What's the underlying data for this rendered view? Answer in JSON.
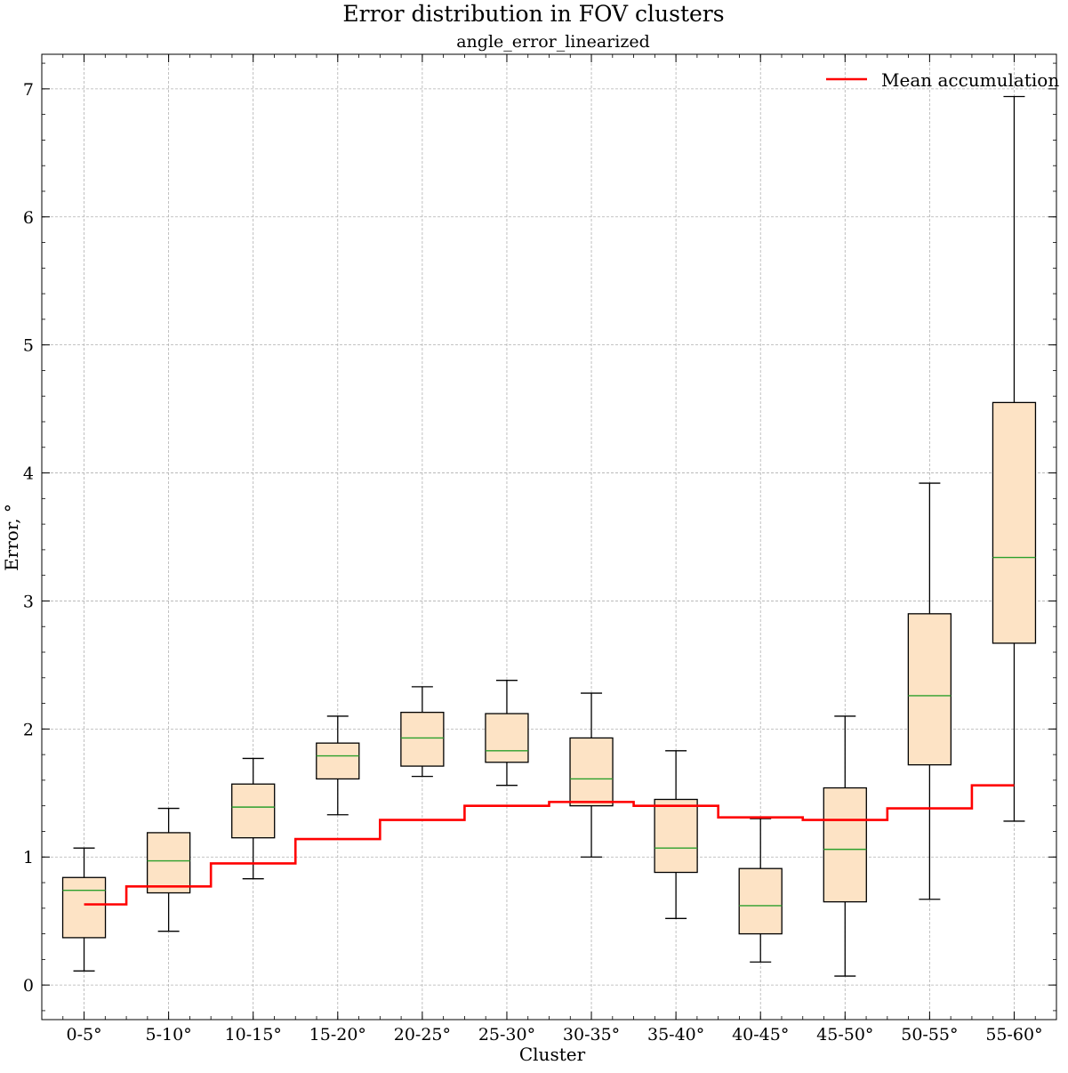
{
  "chart_data": {
    "type": "box",
    "title": "Error distribution in FOV clusters",
    "subtitle": "angle_error_linearized",
    "xlabel": "Cluster",
    "ylabel": "Error, °",
    "ylim": [
      -0.27,
      7.27
    ],
    "yticks": [
      "0",
      "1",
      "2",
      "3",
      "4",
      "5",
      "6",
      "7"
    ],
    "grid": true,
    "legend": {
      "position": "top-right",
      "entries": [
        "Mean accumulation"
      ]
    },
    "colors": {
      "box_fill": "#fde3c5",
      "box_edge": "#000000",
      "median": "#2ca02c",
      "mean_line": "#ff0000",
      "grid": "#b0b0b0"
    },
    "categories": [
      "0-5°",
      "5-10°",
      "10-15°",
      "15-20°",
      "20-25°",
      "25-30°",
      "30-35°",
      "35-40°",
      "40-45°",
      "45-50°",
      "50-55°",
      "55-60°"
    ],
    "boxes": [
      {
        "whisker_low": 0.11,
        "q1": 0.37,
        "median": 0.74,
        "q3": 0.84,
        "whisker_high": 1.07
      },
      {
        "whisker_low": 0.42,
        "q1": 0.72,
        "median": 0.97,
        "q3": 1.19,
        "whisker_high": 1.38
      },
      {
        "whisker_low": 0.83,
        "q1": 1.15,
        "median": 1.39,
        "q3": 1.57,
        "whisker_high": 1.77
      },
      {
        "whisker_low": 1.33,
        "q1": 1.61,
        "median": 1.79,
        "q3": 1.89,
        "whisker_high": 2.1
      },
      {
        "whisker_low": 1.63,
        "q1": 1.71,
        "median": 1.93,
        "q3": 2.13,
        "whisker_high": 2.33
      },
      {
        "whisker_low": 1.56,
        "q1": 1.74,
        "median": 1.83,
        "q3": 2.12,
        "whisker_high": 2.38
      },
      {
        "whisker_low": 1.0,
        "q1": 1.4,
        "median": 1.61,
        "q3": 1.93,
        "whisker_high": 2.28
      },
      {
        "whisker_low": 0.52,
        "q1": 0.88,
        "median": 1.07,
        "q3": 1.45,
        "whisker_high": 1.83
      },
      {
        "whisker_low": 0.18,
        "q1": 0.4,
        "median": 0.62,
        "q3": 0.91,
        "whisker_high": 1.3
      },
      {
        "whisker_low": 0.07,
        "q1": 0.65,
        "median": 1.06,
        "q3": 1.54,
        "whisker_high": 2.1
      },
      {
        "whisker_low": 0.67,
        "q1": 1.72,
        "median": 2.26,
        "q3": 2.9,
        "whisker_high": 3.92
      },
      {
        "whisker_low": 1.28,
        "q1": 2.67,
        "median": 3.34,
        "q3": 4.55,
        "whisker_high": 6.94
      }
    ],
    "mean_accumulation": [
      0.63,
      0.77,
      0.95,
      1.14,
      1.29,
      1.4,
      1.43,
      1.4,
      1.31,
      1.29,
      1.38,
      1.56
    ]
  }
}
